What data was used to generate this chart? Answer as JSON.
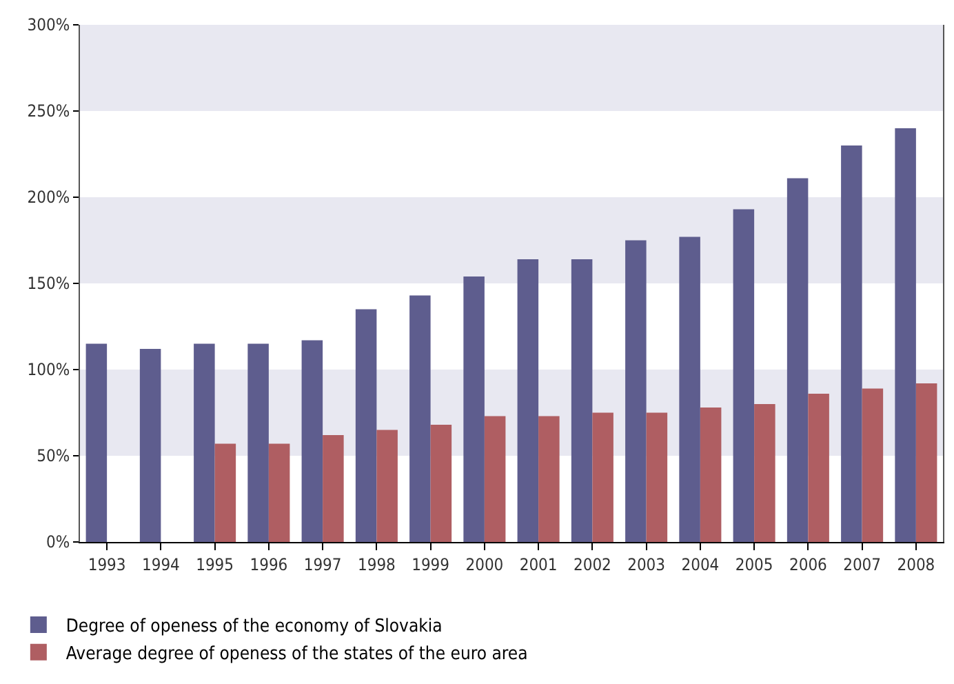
{
  "chart_data": {
    "type": "bar",
    "categories": [
      "1993",
      "1994",
      "1995",
      "1996",
      "1997",
      "1998",
      "1999",
      "2000",
      "2001",
      "2002",
      "2003",
      "2004",
      "2005",
      "2006",
      "2007",
      "2008"
    ],
    "series": [
      {
        "name": "Degree of openess of the economy of Slovakia",
        "color": "#5e5d8e",
        "values": [
          115,
          112,
          115,
          115,
          117,
          135,
          143,
          154,
          164,
          164,
          175,
          177,
          193,
          211,
          230,
          240
        ]
      },
      {
        "name": "Average degree of openess of the states of the euro area",
        "color": "#af5e62",
        "values": [
          null,
          null,
          57,
          57,
          62,
          65,
          68,
          73,
          73,
          75,
          75,
          78,
          80,
          86,
          89,
          92
        ]
      }
    ],
    "ylim": [
      0,
      300
    ],
    "yticks": [
      {
        "value": 0,
        "label": "0%"
      },
      {
        "value": 50,
        "label": "50%"
      },
      {
        "value": 100,
        "label": "100%"
      },
      {
        "value": 150,
        "label": "150%"
      },
      {
        "value": 200,
        "label": "200%"
      },
      {
        "value": 250,
        "label": "250%"
      },
      {
        "value": 300,
        "label": "300%"
      }
    ],
    "bands": [
      {
        "axis": "y",
        "from": 50,
        "to": 100,
        "color": "#e8e8f1"
      },
      {
        "axis": "y",
        "from": 150,
        "to": 200,
        "color": "#e8e8f1"
      },
      {
        "axis": "y",
        "from": 250,
        "to": 300,
        "color": "#e8e8f1"
      }
    ],
    "grid": false,
    "legend": "bottom left"
  }
}
